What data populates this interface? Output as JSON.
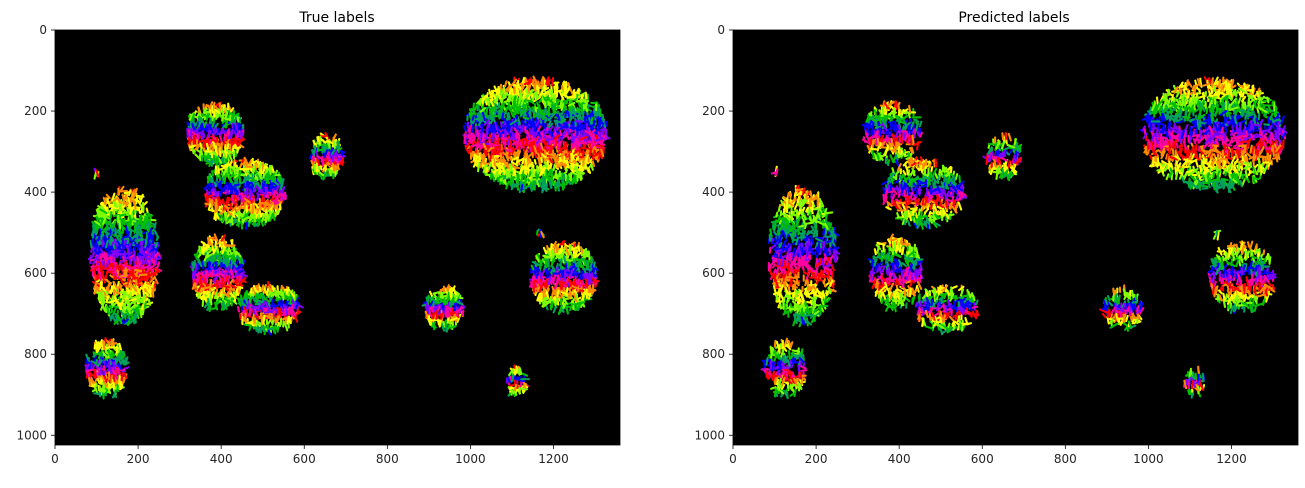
{
  "figure": {
    "background": "#ffffff"
  },
  "chart_data": [
    {
      "type": "heatmap",
      "subtype": "instance-label image",
      "title": "True labels",
      "xlim": [
        0,
        1360
      ],
      "ylim": [
        1024,
        0
      ],
      "xticks": [
        0,
        200,
        400,
        600,
        800,
        1000,
        1200
      ],
      "yticks": [
        0,
        200,
        400,
        600,
        800,
        1000
      ],
      "xtick_labels": [
        "0",
        "200",
        "400",
        "600",
        "800",
        "1000",
        "1200"
      ],
      "ytick_labels": [
        "0",
        "200",
        "400",
        "600",
        "800",
        "1000"
      ],
      "background_color": "#000000",
      "colormap": [
        "#ff0000",
        "#ff8c00",
        "#ffff00",
        "#7fff00",
        "#00c000",
        "#00a060",
        "#0000ff",
        "#8000ff",
        "#ff00a0"
      ],
      "clusters": [
        {
          "x": [
            315,
            455
          ],
          "y": [
            180,
            330
          ]
        },
        {
          "x": [
            360,
            555
          ],
          "y": [
            320,
            485
          ]
        },
        {
          "x": [
            85,
            250
          ],
          "y": [
            390,
            725
          ]
        },
        {
          "x": [
            330,
            455
          ],
          "y": [
            510,
            690
          ]
        },
        {
          "x": [
            440,
            590
          ],
          "y": [
            630,
            745
          ]
        },
        {
          "x": [
            610,
            695
          ],
          "y": [
            260,
            365
          ]
        },
        {
          "x": [
            95,
            105
          ],
          "y": [
            340,
            360
          ]
        },
        {
          "x": [
            75,
            175
          ],
          "y": [
            765,
            905
          ]
        },
        {
          "x": [
            890,
            985
          ],
          "y": [
            635,
            740
          ]
        },
        {
          "x": [
            1085,
            1135
          ],
          "y": [
            835,
            900
          ]
        },
        {
          "x": [
            985,
            1330
          ],
          "y": [
            120,
            395
          ]
        },
        {
          "x": [
            1155,
            1175
          ],
          "y": [
            495,
            510
          ]
        },
        {
          "x": [
            1145,
            1305
          ],
          "y": [
            525,
            695
          ]
        }
      ]
    },
    {
      "type": "heatmap",
      "subtype": "instance-label image",
      "title": "Predicted labels",
      "xlim": [
        0,
        1360
      ],
      "ylim": [
        1024,
        0
      ],
      "xticks": [
        0,
        200,
        400,
        600,
        800,
        1000,
        1200
      ],
      "yticks": [
        0,
        200,
        400,
        600,
        800,
        1000
      ],
      "xtick_labels": [
        "0",
        "200",
        "400",
        "600",
        "800",
        "1000",
        "1200"
      ],
      "ytick_labels": [
        "0",
        "200",
        "400",
        "600",
        "800",
        "1000"
      ],
      "background_color": "#000000",
      "colormap": [
        "#ff0000",
        "#ff8c00",
        "#ffff00",
        "#7fff00",
        "#00c000",
        "#00a060",
        "#0000ff",
        "#8000ff",
        "#ff00a0"
      ],
      "clusters": [
        {
          "x": [
            315,
            455
          ],
          "y": [
            180,
            330
          ]
        },
        {
          "x": [
            360,
            555
          ],
          "y": [
            320,
            485
          ]
        },
        {
          "x": [
            85,
            250
          ],
          "y": [
            390,
            725
          ]
        },
        {
          "x": [
            330,
            455
          ],
          "y": [
            510,
            690
          ]
        },
        {
          "x": [
            440,
            590
          ],
          "y": [
            630,
            745
          ]
        },
        {
          "x": [
            610,
            695
          ],
          "y": [
            260,
            365
          ]
        },
        {
          "x": [
            95,
            105
          ],
          "y": [
            340,
            360
          ]
        },
        {
          "x": [
            75,
            175
          ],
          "y": [
            765,
            905
          ]
        },
        {
          "x": [
            890,
            985
          ],
          "y": [
            635,
            740
          ]
        },
        {
          "x": [
            1085,
            1135
          ],
          "y": [
            835,
            900
          ]
        },
        {
          "x": [
            985,
            1330
          ],
          "y": [
            120,
            395
          ]
        },
        {
          "x": [
            1155,
            1175
          ],
          "y": [
            495,
            510
          ]
        },
        {
          "x": [
            1145,
            1305
          ],
          "y": [
            525,
            695
          ]
        }
      ]
    }
  ]
}
